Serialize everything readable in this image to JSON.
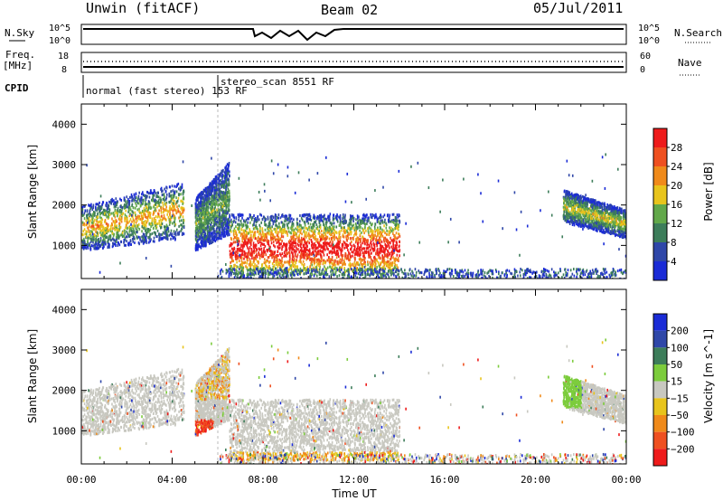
{
  "header": {
    "radar": "Unwin (fitACF)",
    "beam": "Beam 02",
    "date": "05/Jul/2011"
  },
  "nsky_panel": {
    "left_label": "N.Sky",
    "right_label": "N.Search",
    "left_ticks": [
      "10^5",
      "10^0"
    ],
    "right_ticks": [
      "10^5",
      "10^0"
    ]
  },
  "freq_panel": {
    "left_label_1": "Freq.",
    "left_label_2": "[MHz]",
    "right_label": "Nave",
    "left_ticks": [
      "18",
      "8"
    ],
    "right_ticks": [
      "60",
      "0"
    ]
  },
  "cpid_panel": {
    "label": "CPID",
    "modes": [
      {
        "name": "normal (fast stereo) 153 RF",
        "start_hour": 0
      },
      {
        "name": "stereo_scan 8551 RF",
        "start_hour": 6
      }
    ]
  },
  "colors": {
    "power_scale": [
      "#1a2bd6",
      "#2f47a8",
      "#3d7d5a",
      "#62a84a",
      "#e8c41c",
      "#f08a1a",
      "#ef5020",
      "#ee1b1b"
    ],
    "velocity_scale": [
      "#1a2bd6",
      "#2f47a8",
      "#3d7d5a",
      "#7ccc3c",
      "#c8c8c0",
      "#e8c41c",
      "#f08a1a",
      "#ef5020",
      "#ee1b1b"
    ]
  },
  "chart_data": [
    {
      "type": "heatmap",
      "title": "Power",
      "ylabel": "Slant Range [km]",
      "xlabel": "",
      "colorbar_label": "Power [dB]",
      "colorbar_ticks": [
        "4",
        "8",
        "12",
        "16",
        "20",
        "24",
        "28"
      ],
      "xlim": [
        "00:00",
        "24:00"
      ],
      "ylim": [
        180,
        4500
      ],
      "yticks": [
        "1000",
        "2000",
        "3000",
        "4000"
      ],
      "x_ticks": [
        "00:00",
        "04:00",
        "08:00",
        "12:00",
        "16:00",
        "20:00",
        "00:00"
      ],
      "scatter_regions": [
        {
          "t_start": 0,
          "t_end": 4.5,
          "range_low": 900,
          "range_high": 2600,
          "peak_db": 18
        },
        {
          "t_start": 5.0,
          "t_end": 6.5,
          "range_low": 1000,
          "range_high": 3200,
          "peak_db": 10
        },
        {
          "t_start": 6.5,
          "t_end": 14,
          "range_low": 300,
          "range_high": 1800,
          "peak_db": 28
        },
        {
          "t_start": 21.2,
          "t_end": 24,
          "range_low": 1200,
          "range_high": 2400,
          "peak_db": 16
        }
      ]
    },
    {
      "type": "heatmap",
      "title": "Velocity",
      "ylabel": "Slant Range [km]",
      "xlabel": "Time UT",
      "colorbar_label": "Velocity [m s^-1]",
      "colorbar_ticks": [
        "200",
        "100",
        "50",
        "15",
        "−15",
        "−50",
        "−100",
        "−200"
      ],
      "xlim": [
        "00:00",
        "24:00"
      ],
      "ylim": [
        180,
        4500
      ],
      "yticks": [
        "1000",
        "2000",
        "3000",
        "4000"
      ],
      "x_ticks": [
        "00:00",
        "04:00",
        "08:00",
        "12:00",
        "16:00",
        "20:00",
        "00:00"
      ]
    }
  ]
}
